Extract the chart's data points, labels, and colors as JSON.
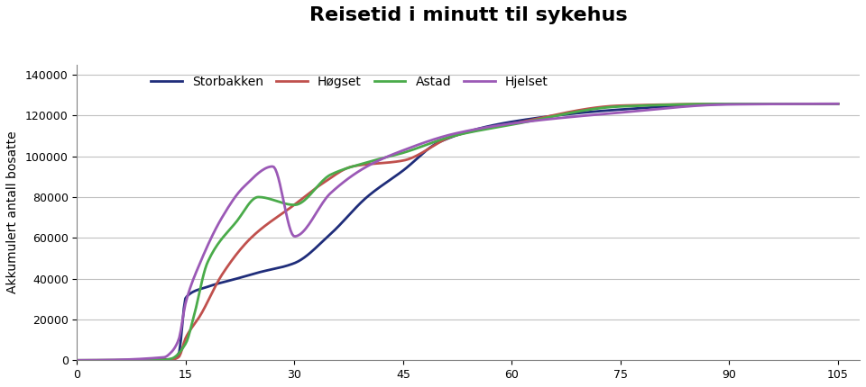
{
  "title": "Reisetid i minutt til sykehus",
  "ylabel": "Akkumulert antall bosatte",
  "xlabel": "",
  "series": {
    "Storbakken": {
      "color": "#1f2d7a",
      "x": [
        0,
        5,
        10,
        13,
        14,
        15,
        16,
        17,
        18,
        20,
        22,
        25,
        28,
        30,
        33,
        35,
        38,
        40,
        42,
        45,
        48,
        50,
        55,
        60,
        65,
        70,
        75,
        80,
        85,
        90,
        95,
        100,
        105
      ],
      "y": [
        0,
        100,
        500,
        1500,
        3000,
        30782,
        31500,
        33000,
        35000,
        38000,
        40000,
        43000,
        45000,
        47638,
        54000,
        60000,
        70000,
        80000,
        90000,
        93041,
        100000,
        105000,
        110000,
        116898,
        119000,
        120000,
        122891,
        123500,
        124500,
        125553,
        125600,
        125650,
        125678
      ]
    },
    "Høgset": {
      "color": "#c0504d",
      "x": [
        0,
        5,
        10,
        13,
        14,
        15,
        16,
        17,
        18,
        20,
        22,
        25,
        28,
        30,
        33,
        35,
        38,
        40,
        42,
        45,
        48,
        50,
        55,
        60,
        65,
        70,
        75,
        80,
        85,
        90,
        95,
        100,
        105
      ],
      "y": [
        0,
        50,
        200,
        800,
        2000,
        11090,
        15000,
        20000,
        28000,
        40000,
        52000,
        65000,
        72000,
        76279,
        85000,
        90000,
        95000,
        97000,
        97500,
        97891,
        103000,
        108000,
        112000,
        115869,
        118000,
        120000,
        124816,
        125000,
        125300,
        125656,
        125660,
        125670,
        125678
      ]
    },
    "Astad": {
      "color": "#4aab4a",
      "x": [
        0,
        5,
        10,
        12,
        13,
        14,
        15,
        16,
        17,
        18,
        20,
        22,
        25,
        28,
        30,
        33,
        35,
        38,
        40,
        42,
        45,
        48,
        50,
        55,
        60,
        65,
        70,
        75,
        80,
        85,
        90,
        95,
        100,
        105
      ],
      "y": [
        0,
        50,
        200,
        600,
        1500,
        3000,
        8315,
        15000,
        30000,
        50000,
        65000,
        75000,
        85000,
        90000,
        76154,
        90000,
        95000,
        98000,
        99000,
        100000,
        101693,
        106000,
        110000,
        113000,
        115469,
        118000,
        120000,
        124381,
        125000,
        125300,
        125678,
        125678,
        125678,
        125678
      ]
    },
    "Hjelset": {
      "color": "#9b59b6",
      "x": [
        0,
        5,
        10,
        12,
        13,
        14,
        15,
        16,
        17,
        18,
        20,
        22,
        25,
        28,
        30,
        33,
        35,
        38,
        40,
        42,
        45,
        48,
        50,
        55,
        60,
        65,
        70,
        75,
        80,
        85,
        90,
        95,
        100,
        105
      ],
      "y": [
        0,
        100,
        1000,
        3000,
        6000,
        12000,
        28409,
        38000,
        50000,
        65000,
        78000,
        88000,
        95000,
        100000,
        60730,
        80000,
        90000,
        97000,
        100000,
        101000,
        102899,
        108000,
        112000,
        114000,
        116031,
        118000,
        119000,
        121409,
        122000,
        123000,
        125402,
        125500,
        125600,
        125678
      ]
    }
  },
  "xticks": [
    0,
    15,
    30,
    45,
    60,
    75,
    90,
    105
  ],
  "yticks": [
    0,
    20000,
    40000,
    60000,
    80000,
    100000,
    120000,
    140000
  ],
  "xlim": [
    0,
    108
  ],
  "ylim": [
    0,
    145000
  ],
  "grid_color": "#c0c0c0",
  "border_color": "#808080",
  "bg_color": "#ffffff",
  "title_fontsize": 16,
  "legend_fontsize": 10,
  "axis_fontsize": 9
}
